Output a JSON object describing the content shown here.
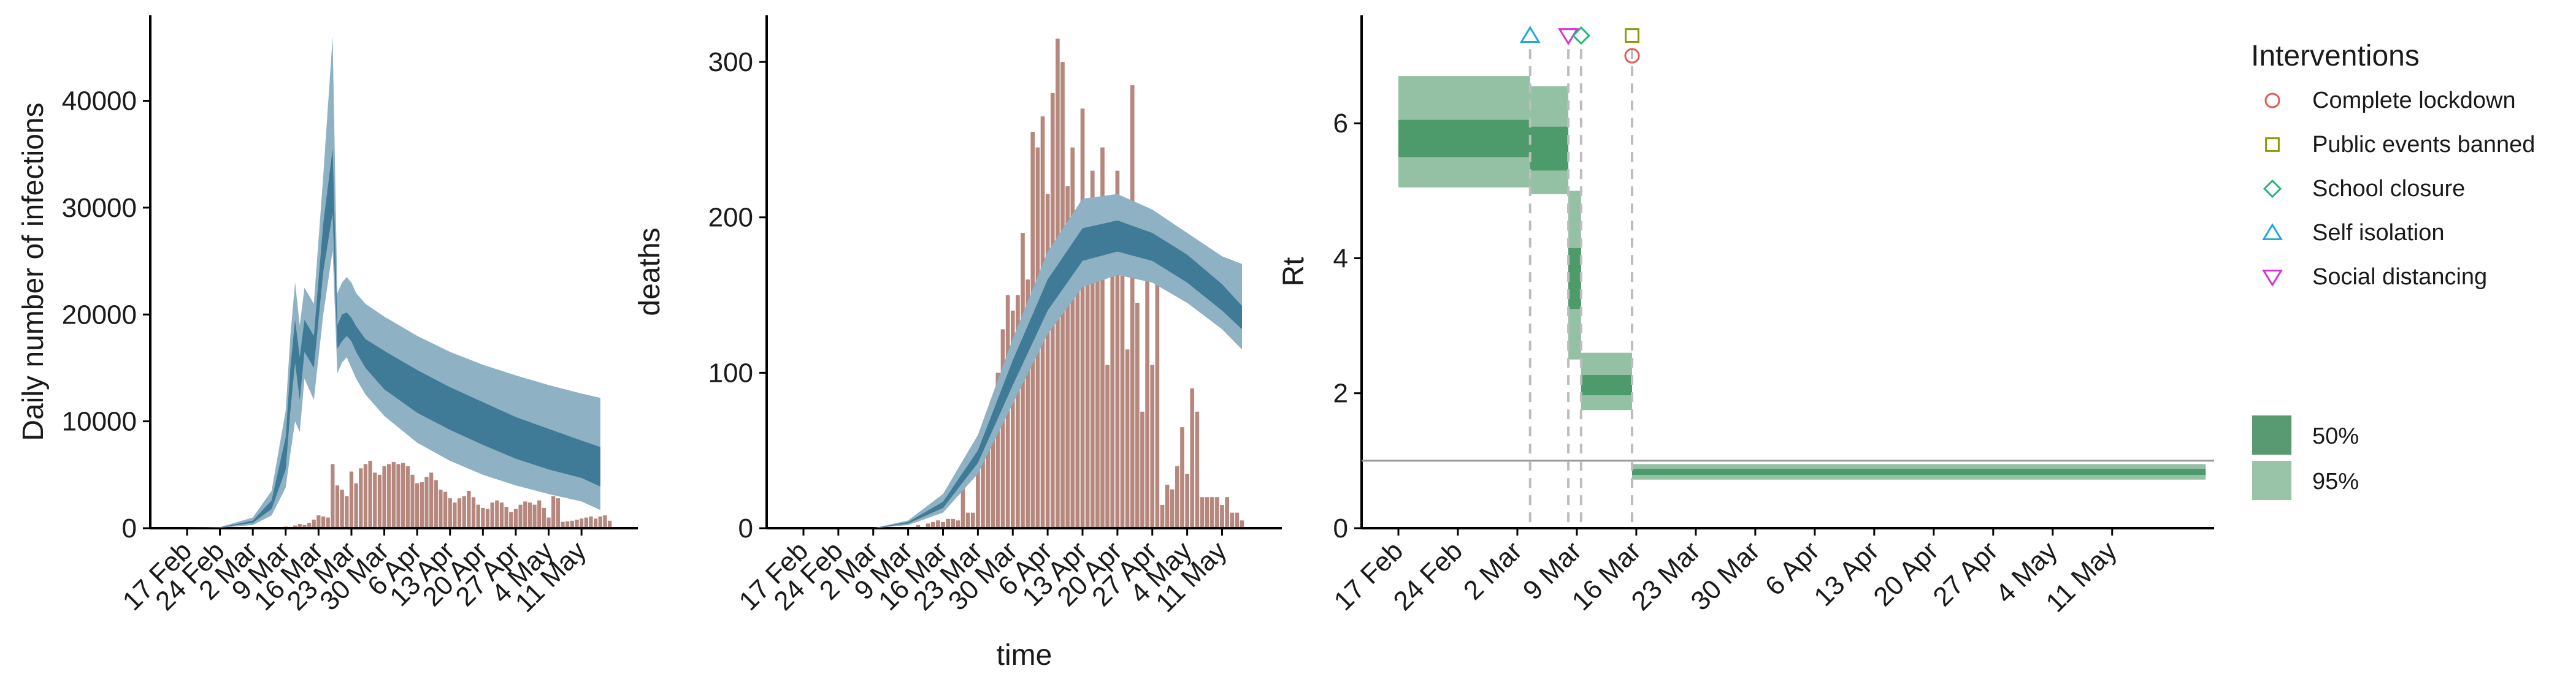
{
  "chart_data": [
    {
      "type": "area",
      "title": "",
      "xlabel": "",
      "ylabel": "Daily number of infections",
      "xticks": [
        "17 Feb",
        "24 Feb",
        "2 Mar",
        "9 Mar",
        "16 Mar",
        "23 Mar",
        "30 Mar",
        "6 Apr",
        "13 Apr",
        "20 Apr",
        "27 Apr",
        "4 May",
        "11 May"
      ],
      "yticks": [
        "0",
        "10000",
        "20000",
        "30000",
        "40000"
      ],
      "ylim": [
        0,
        48000
      ],
      "grid": false,
      "colors": {
        "ci95": "#8fb1c4",
        "ci50": "#3f7b96",
        "bars": "#b5877d"
      },
      "series": [
        {
          "x": [
            0,
            7,
            14,
            18,
            21,
            22,
            23,
            24,
            25,
            27,
            29,
            31,
            32,
            33,
            34,
            35,
            36,
            38,
            42,
            49,
            56,
            63,
            70,
            77,
            84,
            88
          ],
          "lo95": [
            0,
            50,
            300,
            1200,
            3800,
            7000,
            10000,
            9000,
            14000,
            12000,
            20000,
            26000,
            14500,
            15500,
            16000,
            15000,
            14000,
            12500,
            10500,
            8000,
            6300,
            5000,
            4000,
            3200,
            2500,
            1700
          ],
          "lo50": [
            0,
            60,
            500,
            1800,
            5500,
            11000,
            15500,
            12000,
            16500,
            15000,
            24000,
            29500,
            16800,
            17500,
            18000,
            17500,
            16500,
            15000,
            13000,
            10800,
            9200,
            7800,
            6500,
            5500,
            4700,
            3900
          ],
          "mid": [
            0,
            70,
            600,
            2200,
            7000,
            13000,
            17500,
            14000,
            18000,
            16500,
            26000,
            32000,
            17800,
            18800,
            19000,
            18500,
            17500,
            16200,
            14600,
            12600,
            11000,
            9600,
            8400,
            7400,
            6400,
            5800
          ],
          "hi50": [
            0,
            80,
            700,
            2600,
            8500,
            15000,
            19500,
            16000,
            19500,
            18000,
            28500,
            35500,
            19000,
            20000,
            20200,
            19700,
            18900,
            17700,
            16600,
            14800,
            13200,
            11800,
            10400,
            9300,
            8200,
            7600
          ],
          "hi95": [
            0,
            100,
            1000,
            3500,
            11000,
            18000,
            23000,
            19000,
            22500,
            21000,
            33000,
            46000,
            22000,
            23000,
            23500,
            23000,
            22000,
            21000,
            19800,
            18000,
            16500,
            15300,
            14300,
            13400,
            12600,
            12200
          ]
        }
      ],
      "bars": {
        "x_start": 0,
        "values": [
          0,
          0,
          0,
          0,
          0,
          0,
          0,
          0,
          0,
          0,
          0,
          0,
          0,
          0,
          0,
          0,
          0,
          0,
          50,
          80,
          60,
          150,
          120,
          250,
          400,
          300,
          500,
          800,
          1200,
          1100,
          1000,
          6000,
          4000,
          3600,
          3000,
          5300,
          4200,
          5600,
          6000,
          6300,
          5200,
          5000,
          5800,
          6000,
          6200,
          6000,
          6100,
          5800,
          5000,
          4200,
          4300,
          4800,
          5200,
          4500,
          3600,
          3400,
          2800,
          2400,
          2800,
          3000,
          3500,
          2900,
          2200,
          1900,
          1800,
          2400,
          2600,
          2400,
          2000,
          1500,
          1800,
          2200,
          2500,
          2400,
          2200,
          2600,
          1900,
          1000,
          3000,
          2800,
          600,
          650,
          700,
          800,
          900,
          1000,
          1100,
          900,
          1100,
          1200,
          700
        ]
      }
    },
    {
      "type": "area",
      "title": "",
      "xlabel": "time",
      "ylabel": "deaths",
      "xticks": [
        "17 Feb",
        "24 Feb",
        "2 Mar",
        "9 Mar",
        "16 Mar",
        "23 Mar",
        "30 Mar",
        "6 Apr",
        "13 Apr",
        "20 Apr",
        "27 Apr",
        "4 May",
        "11 May"
      ],
      "yticks": [
        "0",
        "100",
        "200",
        "300"
      ],
      "ylim": [
        0,
        330
      ],
      "grid": false,
      "colors": {
        "ci95": "#8fb1c4",
        "ci50": "#3f7b96",
        "bars": "#b5877d"
      },
      "series": [
        {
          "x": [
            0,
            7,
            14,
            21,
            28,
            35,
            42,
            49,
            56,
            63,
            70,
            77,
            84,
            88
          ],
          "lo95": [
            0,
            0,
            0,
            2,
            10,
            35,
            80,
            125,
            155,
            163,
            158,
            145,
            128,
            115
          ],
          "lo50": [
            0,
            0,
            0,
            3,
            13,
            42,
            92,
            140,
            172,
            178,
            172,
            158,
            140,
            128
          ],
          "mid": [
            0,
            0,
            0,
            3,
            15,
            46,
            100,
            150,
            183,
            188,
            181,
            167,
            148,
            135
          ],
          "hi50": [
            0,
            0,
            0,
            4,
            17,
            50,
            108,
            160,
            193,
            198,
            190,
            176,
            157,
            143
          ],
          "hi95": [
            0,
            0,
            0,
            5,
            22,
            60,
            122,
            178,
            212,
            215,
            205,
            190,
            175,
            170
          ]
        }
      ],
      "bars": {
        "x_start": 0,
        "values": [
          0,
          0,
          0,
          0,
          0,
          0,
          0,
          0,
          0,
          0,
          0,
          0,
          0,
          0,
          0,
          0,
          0,
          0,
          0,
          0,
          0,
          0,
          0,
          2,
          0,
          3,
          4,
          5,
          4,
          6,
          6,
          5,
          30,
          10,
          10,
          45,
          55,
          62,
          82,
          100,
          128,
          150,
          140,
          150,
          190,
          160,
          255,
          245,
          265,
          215,
          280,
          315,
          300,
          220,
          245,
          200,
          270,
          210,
          230,
          175,
          245,
          105,
          185,
          230,
          170,
          115,
          285,
          145,
          75,
          205,
          105,
          175,
          15,
          28,
          25,
          40,
          65,
          35,
          90,
          75,
          20,
          20,
          20,
          20,
          15,
          20,
          10,
          10,
          5
        ]
      }
    },
    {
      "type": "area",
      "title": "",
      "xlabel": "",
      "ylabel": "Rt",
      "xticks": [
        "17 Feb",
        "24 Feb",
        "2 Mar",
        "9 Mar",
        "16 Mar",
        "23 Mar",
        "30 Mar",
        "6 Apr",
        "13 Apr",
        "20 Apr",
        "27 Apr",
        "4 May",
        "11 May"
      ],
      "yticks": [
        "0",
        "2",
        "4",
        "6"
      ],
      "ylim": [
        0,
        7.6
      ],
      "reference_line": 1,
      "grid": false,
      "colors": {
        "ci95": "#94c0a3",
        "ci50": "#4d9a6b",
        "line": "#2e7d4f",
        "vline": "#bdbdbd"
      },
      "segments": [
        {
          "x0": 0,
          "x1": 15.5,
          "lo95": 5.05,
          "hi95": 6.7,
          "lo50": 5.5,
          "hi50": 6.05,
          "mid": 5.8
        },
        {
          "x0": 15.5,
          "x1": 20,
          "lo95": 4.95,
          "hi95": 6.55,
          "lo50": 5.3,
          "hi50": 5.95,
          "mid": 5.6
        },
        {
          "x0": 20,
          "x1": 21.5,
          "lo95": 2.5,
          "hi95": 5.0,
          "lo50": 3.25,
          "hi50": 4.15,
          "mid": 3.7
        },
        {
          "x0": 21.5,
          "x1": 27.5,
          "lo95": 1.75,
          "hi95": 2.6,
          "lo50": 1.97,
          "hi50": 2.27,
          "mid": 2.1
        },
        {
          "x0": 27.5,
          "x1": 95,
          "lo95": 0.72,
          "hi95": 0.95,
          "lo50": 0.79,
          "hi50": 0.88,
          "mid": 0.83
        }
      ],
      "interventions": [
        {
          "name": "Self isolation",
          "x": 15.5,
          "marker": "triangle-up",
          "color": "#1fa7e0",
          "y": 7.3
        },
        {
          "name": "Social distancing",
          "x": 20,
          "marker": "triangle-down",
          "color": "#d633d6",
          "y": 7.3
        },
        {
          "name": "School closure",
          "x": 21.5,
          "marker": "diamond",
          "color": "#1fb877",
          "y": 7.3
        },
        {
          "name": "Public events banned",
          "x": 27.5,
          "marker": "square",
          "color": "#8a9a0b",
          "y": 7.3
        },
        {
          "name": "Complete lockdown",
          "x": 27.5,
          "marker": "circle",
          "color": "#e35a5a",
          "y": 7.0
        }
      ]
    }
  ],
  "legend": {
    "interventions_title": "Interventions",
    "interventions": [
      {
        "label": "Complete lockdown",
        "marker": "circle",
        "color": "#e35a5a"
      },
      {
        "label": "Public events banned",
        "marker": "square",
        "color": "#8a9a0b"
      },
      {
        "label": "School closure",
        "marker": "diamond",
        "color": "#1fb877"
      },
      {
        "label": "Self isolation",
        "marker": "triangle-up",
        "color": "#1fa7e0"
      },
      {
        "label": "Social distancing",
        "marker": "triangle-down",
        "color": "#d633d6"
      }
    ],
    "ci": [
      {
        "label": "50%",
        "color": "#5a9a72"
      },
      {
        "label": "95%",
        "color": "#9ac4a8"
      }
    ]
  }
}
